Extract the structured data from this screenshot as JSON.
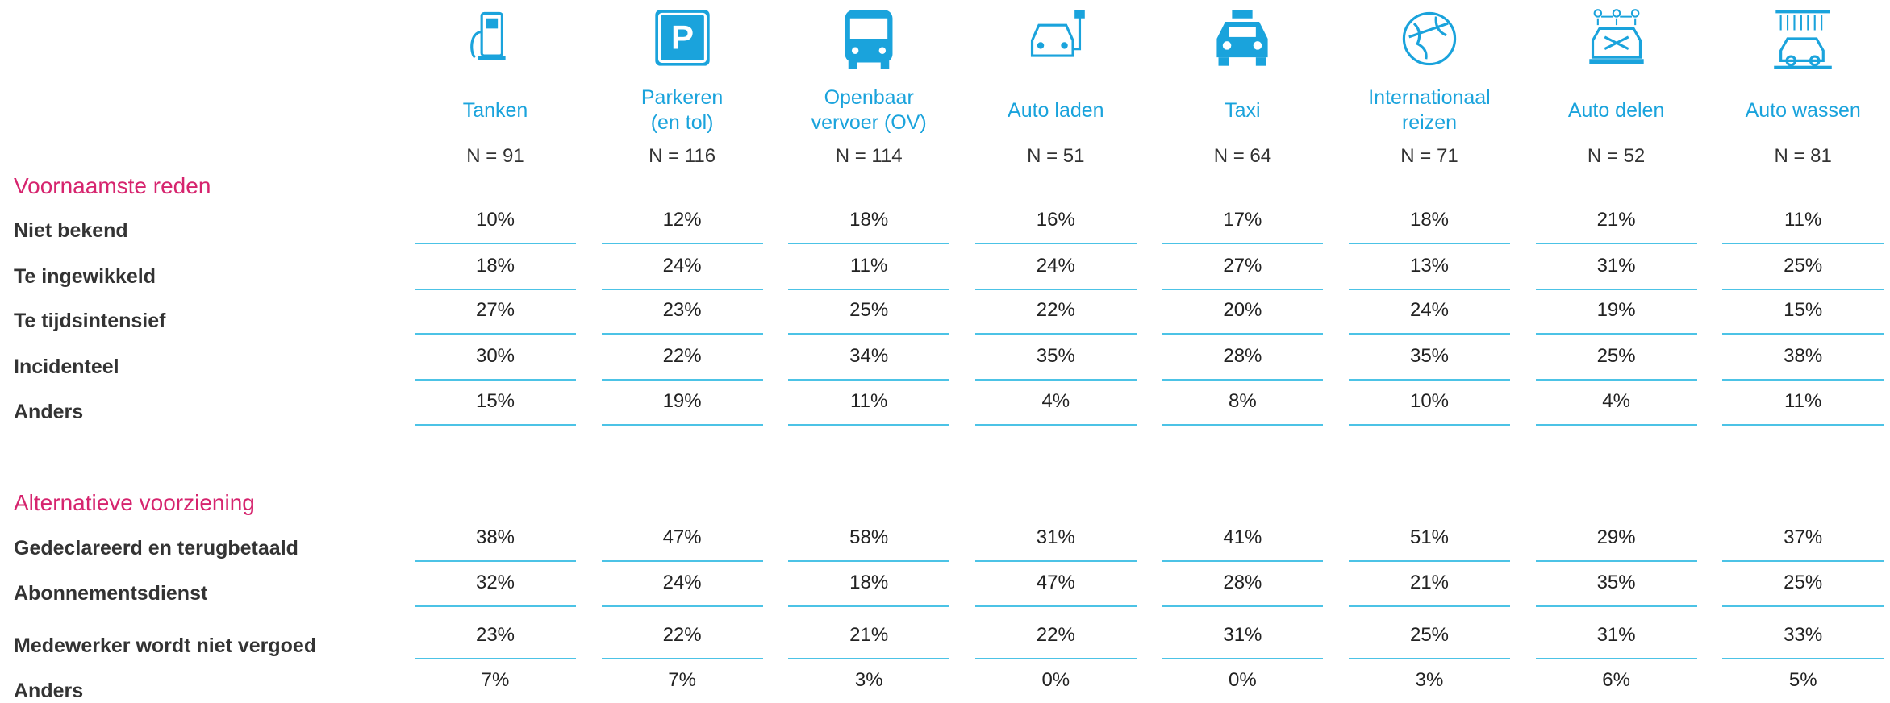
{
  "columns": [
    {
      "label": "Tanken",
      "n": "N = 91"
    },
    {
      "label": "Parkeren\n(en tol)",
      "n": "N = 116"
    },
    {
      "label": "Openbaar\nvervoer (OV)",
      "n": "N = 114"
    },
    {
      "label": "Auto laden",
      "n": "N = 51"
    },
    {
      "label": "Taxi",
      "n": "N = 64"
    },
    {
      "label": "Internationaal\nreizen",
      "n": "N = 71"
    },
    {
      "label": "Auto delen",
      "n": "N = 52"
    },
    {
      "label": "Auto wassen",
      "n": "N = 81"
    }
  ],
  "sections": [
    {
      "title": "Voornaamste reden",
      "rows": [
        {
          "label": "Niet bekend",
          "values": [
            "10%",
            "12%",
            "18%",
            "16%",
            "17%",
            "18%",
            "21%",
            "11%"
          ]
        },
        {
          "label": "Te ingewikkeld",
          "values": [
            "18%",
            "24%",
            "11%",
            "24%",
            "27%",
            "13%",
            "31%",
            "25%"
          ]
        },
        {
          "label": "Te tijdsintensief",
          "values": [
            "27%",
            "23%",
            "25%",
            "22%",
            "20%",
            "24%",
            "19%",
            "15%"
          ]
        },
        {
          "label": "Incidenteel",
          "values": [
            "30%",
            "22%",
            "34%",
            "35%",
            "28%",
            "35%",
            "25%",
            "38%"
          ]
        },
        {
          "label": "Anders",
          "values": [
            "15%",
            "19%",
            "11%",
            "4%",
            "8%",
            "10%",
            "4%",
            "11%"
          ]
        }
      ]
    },
    {
      "title": "Alternatieve voorziening",
      "rows": [
        {
          "label": "Gedeclareerd en terugbetaald",
          "values": [
            "38%",
            "47%",
            "58%",
            "31%",
            "41%",
            "51%",
            "29%",
            "37%"
          ]
        },
        {
          "label": "Abonnementsdienst",
          "values": [
            "32%",
            "24%",
            "18%",
            "47%",
            "28%",
            "21%",
            "35%",
            "25%"
          ]
        },
        {
          "label": "Medewerker wordt niet vergoed",
          "values": [
            "23%",
            "22%",
            "21%",
            "22%",
            "31%",
            "25%",
            "31%",
            "33%"
          ]
        },
        {
          "label": "Anders",
          "values": [
            "7%",
            "7%",
            "3%",
            "0%",
            "0%",
            "3%",
            "6%",
            "5%"
          ]
        }
      ]
    }
  ]
}
